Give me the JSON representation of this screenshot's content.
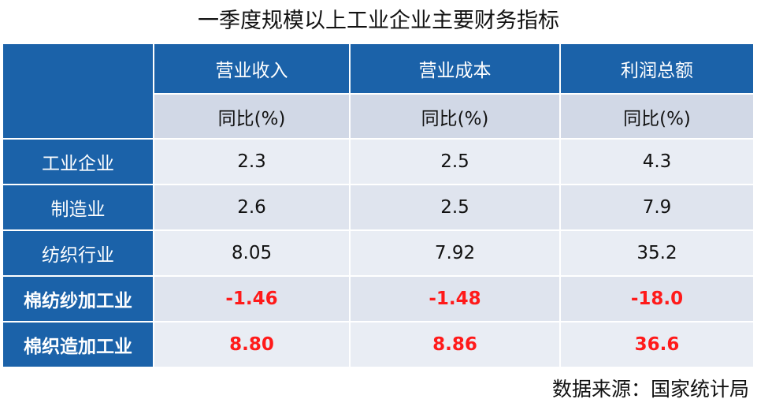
{
  "title": "一季度规模以上工业企业主要财务指标",
  "table": {
    "columns": [
      "营业收入",
      "营业成本",
      "利润总额"
    ],
    "subheaders": [
      "同比(%)",
      "同比(%)",
      "同比(%)"
    ],
    "rows": [
      {
        "label": "工业企业",
        "values": [
          "2.3",
          "2.5",
          "4.3"
        ],
        "highlight": false
      },
      {
        "label": "制造业",
        "values": [
          "2.6",
          "2.5",
          "7.9"
        ],
        "highlight": false
      },
      {
        "label": "纺织行业",
        "values": [
          "8.05",
          "7.92",
          "35.2"
        ],
        "highlight": false
      },
      {
        "label": "棉纺纱加工业",
        "values": [
          "-1.46",
          "-1.48",
          "-18.0"
        ],
        "highlight": true
      },
      {
        "label": "棉织造加工业",
        "values": [
          "8.80",
          "8.86",
          "36.6"
        ],
        "highlight": true
      }
    ]
  },
  "source": "数据来源：国家统计局"
}
